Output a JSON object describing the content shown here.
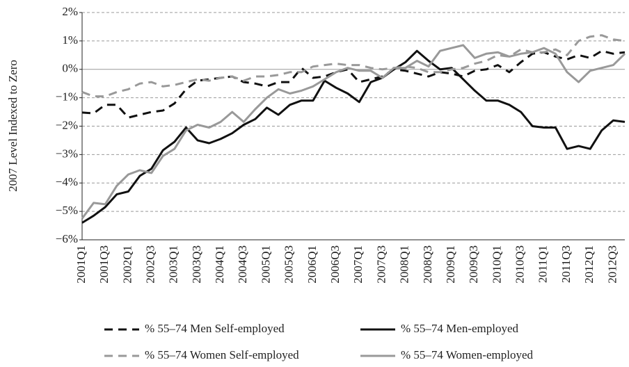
{
  "chart_data": {
    "type": "line",
    "y_label": "2007 Level Indexed to Zero",
    "categories": [
      "2001Q1",
      null,
      "2001Q3",
      null,
      "2002Q1",
      null,
      "2002Q3",
      null,
      "2003Q1",
      null,
      "2003Q3",
      null,
      "2004Q1",
      null,
      "2004Q3",
      null,
      "2005Q1",
      null,
      "2005Q3",
      null,
      "2006Q1",
      null,
      "2006Q3",
      null,
      "2007Q1",
      null,
      "2007Q3",
      null,
      "2008Q1",
      null,
      "2008Q3",
      null,
      "2009Q1",
      null,
      "2009Q3",
      null,
      "2010Q1",
      null,
      "2010Q3",
      null,
      "2011Q1",
      null,
      "2011Q3",
      null,
      "2012Q1",
      null,
      "2012Q3",
      null
    ],
    "series": [
      {
        "name": "% 55–74 Men Self-employed",
        "color": "#111111",
        "dashed": true,
        "values": [
          -1.52,
          -1.55,
          -1.25,
          -1.25,
          -1.7,
          -1.6,
          -1.5,
          -1.45,
          -1.2,
          -0.7,
          -0.4,
          -0.35,
          -0.3,
          -0.25,
          -0.45,
          -0.5,
          -0.6,
          -0.45,
          -0.45,
          0.05,
          -0.3,
          -0.25,
          -0.1,
          0.0,
          -0.45,
          -0.35,
          -0.25,
          0.0,
          -0.05,
          -0.15,
          -0.25,
          -0.1,
          -0.15,
          -0.25,
          -0.05,
          0.0,
          0.15,
          -0.1,
          0.25,
          0.55,
          0.6,
          0.45,
          0.35,
          0.5,
          0.4,
          0.65,
          0.55,
          0.6
        ]
      },
      {
        "name": "% 55–74 Men-employed",
        "color": "#111111",
        "dashed": false,
        "values": [
          -5.4,
          -5.15,
          -4.85,
          -4.4,
          -4.3,
          -3.75,
          -3.5,
          -2.85,
          -2.55,
          -2.05,
          -2.5,
          -2.6,
          -2.45,
          -2.25,
          -1.95,
          -1.75,
          -1.35,
          -1.6,
          -1.25,
          -1.1,
          -1.1,
          -0.4,
          -0.65,
          -0.85,
          -1.15,
          -0.45,
          -0.3,
          0.0,
          0.25,
          0.65,
          0.3,
          0.0,
          0.05,
          -0.35,
          -0.75,
          -1.1,
          -1.1,
          -1.25,
          -1.5,
          -2.0,
          -2.05,
          -2.05,
          -2.8,
          -2.7,
          -2.8,
          -2.15,
          -1.8,
          -1.85
        ]
      },
      {
        "name": "% 55–74 Women Self-employed",
        "color": "#999999",
        "dashed": true,
        "values": [
          -0.8,
          -0.95,
          -0.95,
          -0.8,
          -0.7,
          -0.5,
          -0.45,
          -0.6,
          -0.55,
          -0.45,
          -0.35,
          -0.4,
          -0.3,
          -0.25,
          -0.4,
          -0.25,
          -0.25,
          -0.2,
          -0.1,
          -0.1,
          0.1,
          0.15,
          0.2,
          0.15,
          0.15,
          0.05,
          0.0,
          0.05,
          0.1,
          0.05,
          -0.1,
          -0.1,
          0.0,
          0.05,
          0.2,
          0.3,
          0.5,
          0.45,
          0.7,
          0.6,
          0.6,
          0.7,
          0.5,
          1.0,
          1.15,
          1.2,
          1.05,
          1.0
        ]
      },
      {
        "name": "% 55–74 Women-employed",
        "color": "#999999",
        "dashed": false,
        "values": [
          -5.25,
          -4.7,
          -4.75,
          -4.1,
          -3.7,
          -3.55,
          -3.65,
          -3.05,
          -2.8,
          -2.15,
          -1.95,
          -2.05,
          -1.85,
          -1.5,
          -1.85,
          -1.4,
          -1.0,
          -0.7,
          -0.85,
          -0.75,
          -0.6,
          -0.35,
          -0.1,
          0.05,
          -0.05,
          -0.05,
          -0.3,
          0.05,
          0.05,
          0.3,
          0.1,
          0.65,
          0.75,
          0.85,
          0.4,
          0.55,
          0.6,
          0.45,
          0.55,
          0.6,
          0.75,
          0.55,
          -0.1,
          -0.45,
          -0.05,
          0.05,
          0.15,
          0.55
        ]
      }
    ],
    "ylim": [
      -6,
      2
    ],
    "yticks": [
      {
        "value": -6,
        "label": "−6%"
      },
      {
        "value": -5,
        "label": "−5%"
      },
      {
        "value": -4,
        "label": "−4%"
      },
      {
        "value": -3,
        "label": "−3%"
      },
      {
        "value": -2,
        "label": "−2%"
      },
      {
        "value": -1,
        "label": "−1%"
      },
      {
        "value": 0,
        "label": "0%"
      },
      {
        "value": 1,
        "label": "1%"
      },
      {
        "value": 2,
        "label": "2%"
      }
    ],
    "grid": true
  }
}
